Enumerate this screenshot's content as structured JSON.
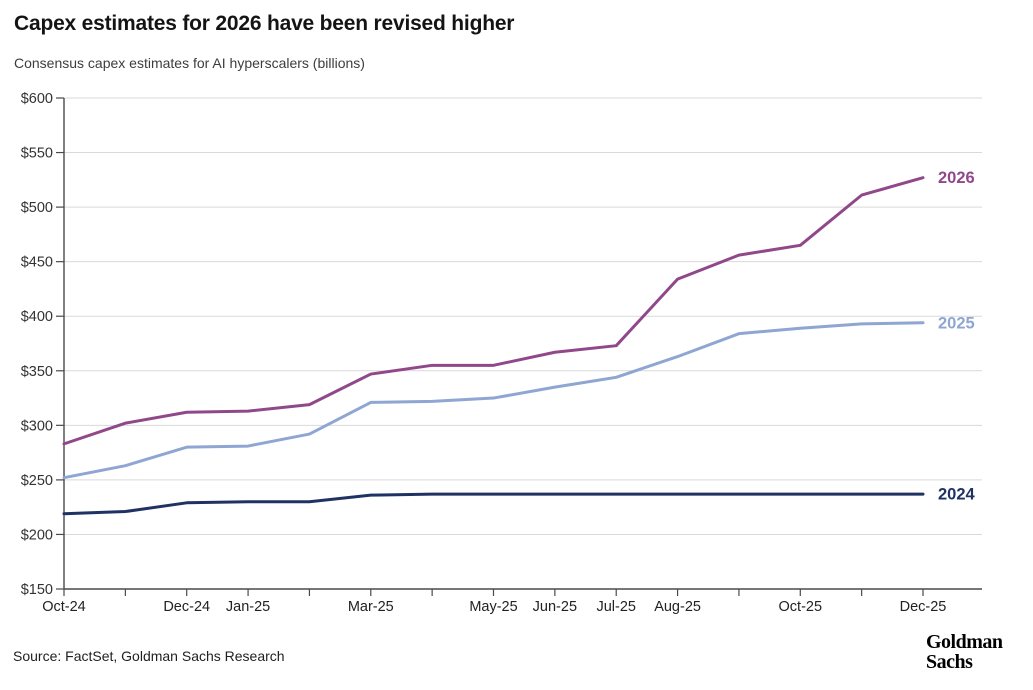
{
  "header": {
    "title": "Capex estimates for 2026 have been revised higher",
    "subtitle": "Consensus capex estimates for AI hyperscalers (billions)"
  },
  "footer": {
    "source": "Source: FactSet, Goldman Sachs Research",
    "logo_line1": "Goldman",
    "logo_line2": "Sachs"
  },
  "chart_data": {
    "type": "line",
    "title": "Capex estimates for 2026 have been revised higher",
    "subtitle": "Consensus capex estimates for AI hyperscalers (billions)",
    "x": [
      "Oct-24",
      "Nov-24",
      "Dec-24",
      "Jan-25",
      "Feb-25",
      "Mar-25",
      "Apr-25",
      "May-25",
      "Jun-25",
      "Jul-25",
      "Aug-25",
      "Sep-25",
      "Oct-25",
      "Nov-25",
      "Dec-25"
    ],
    "x_labels_shown": [
      "Oct-24",
      "Dec-24",
      "Jan-25",
      "Mar-25",
      "May-25",
      "Jun-25",
      "Jul-25",
      "Aug-25",
      "Oct-25",
      "Dec-25"
    ],
    "series": [
      {
        "name": "2026",
        "color": "#90488a",
        "values": [
          283,
          302,
          312,
          313,
          319,
          347,
          355,
          355,
          367,
          373,
          434,
          456,
          465,
          511,
          527
        ]
      },
      {
        "name": "2025",
        "color": "#8fa5d2",
        "values": [
          252,
          263,
          280,
          281,
          292,
          321,
          322,
          325,
          335,
          344,
          363,
          384,
          389,
          393,
          394
        ]
      },
      {
        "name": "2024",
        "color": "#1f3263",
        "values": [
          219,
          221,
          229,
          230,
          230,
          236,
          237,
          237,
          237,
          237,
          237,
          237,
          237,
          237,
          237
        ]
      }
    ],
    "ylim": [
      150,
      600
    ],
    "ytick_step": 50,
    "ytick_prefix": "$",
    "grid": "horizontal",
    "legend_position": "line-end-labels",
    "colors": {
      "gridline": "#d9d9d9",
      "axis": "#4a4a4a",
      "tick_label": "#333333",
      "x_label": "#222222"
    }
  }
}
